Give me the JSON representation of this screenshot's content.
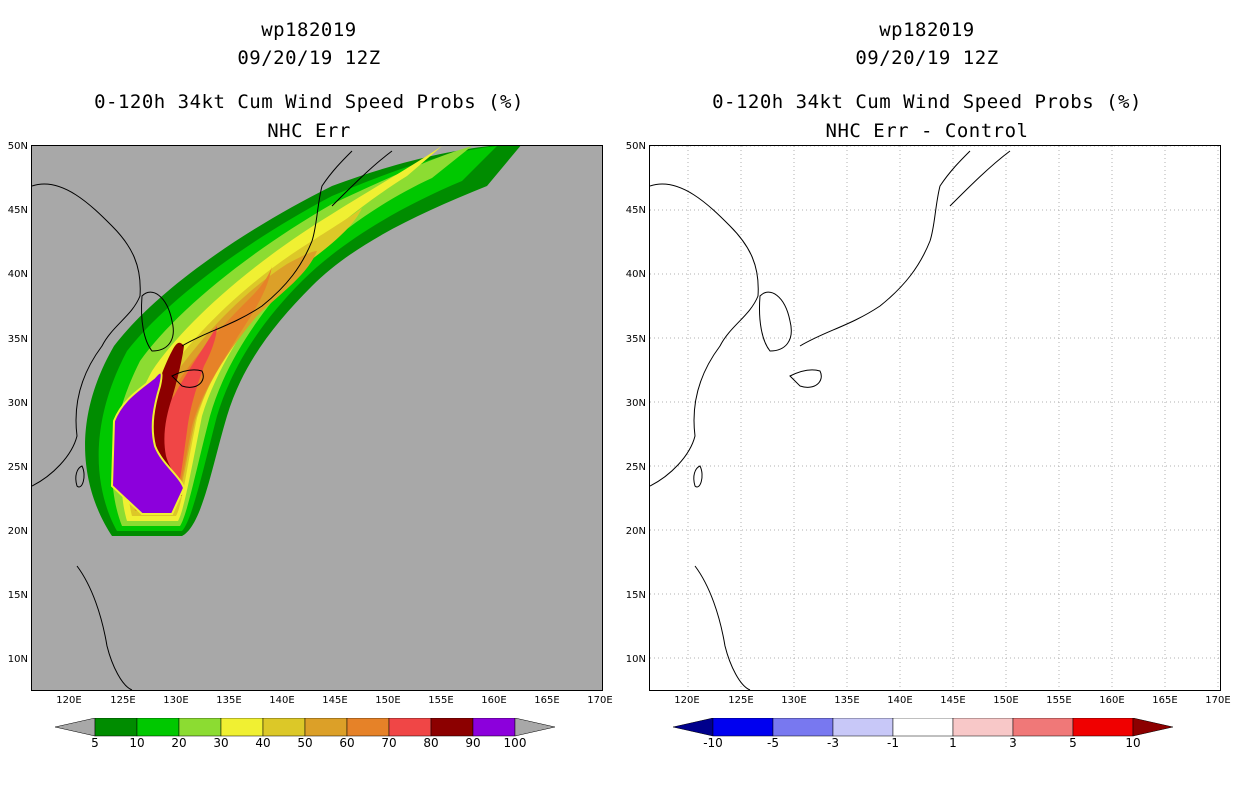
{
  "left": {
    "storm_id": "wp182019",
    "datetime": "09/20/19 12Z",
    "title": "0-120h 34kt Cum Wind Speed Probs (%)",
    "subtitle": "NHC Err",
    "background_color": "#a8a8a8",
    "colorbar": {
      "colors": [
        "#008c00",
        "#00c800",
        "#8cdc32",
        "#f0f032",
        "#dcc828",
        "#dca028",
        "#e68228",
        "#f04646",
        "#8c0000",
        "#8c00dc"
      ],
      "under_color": "#a8a8a8",
      "over_color": "#a8a8a8",
      "labels": [
        "5",
        "10",
        "20",
        "30",
        "40",
        "50",
        "60",
        "70",
        "80",
        "90",
        "100"
      ]
    }
  },
  "right": {
    "storm_id": "wp182019",
    "datetime": "09/20/19 12Z",
    "title": "0-120h 34kt Cum Wind Speed Probs (%)",
    "subtitle": "NHC Err - Control",
    "background_color": "#ffffff",
    "colorbar": {
      "colors": [
        "#0000f0",
        "#7878f0",
        "#c8c8f8",
        "#ffffff",
        "#f8c8c8",
        "#f07878",
        "#f00000"
      ],
      "under_color": "#00008c",
      "over_color": "#8c0000",
      "labels": [
        "-10",
        "-5",
        "-3",
        "-1",
        "1",
        "3",
        "5",
        "10"
      ]
    }
  },
  "axes": {
    "lat_labels": [
      "50N",
      "45N",
      "40N",
      "35N",
      "30N",
      "25N",
      "20N",
      "15N",
      "10N"
    ],
    "lon_labels": [
      "120E",
      "125E",
      "130E",
      "135E",
      "140E",
      "145E",
      "150E",
      "155E",
      "160E",
      "165E",
      "170E"
    ]
  }
}
